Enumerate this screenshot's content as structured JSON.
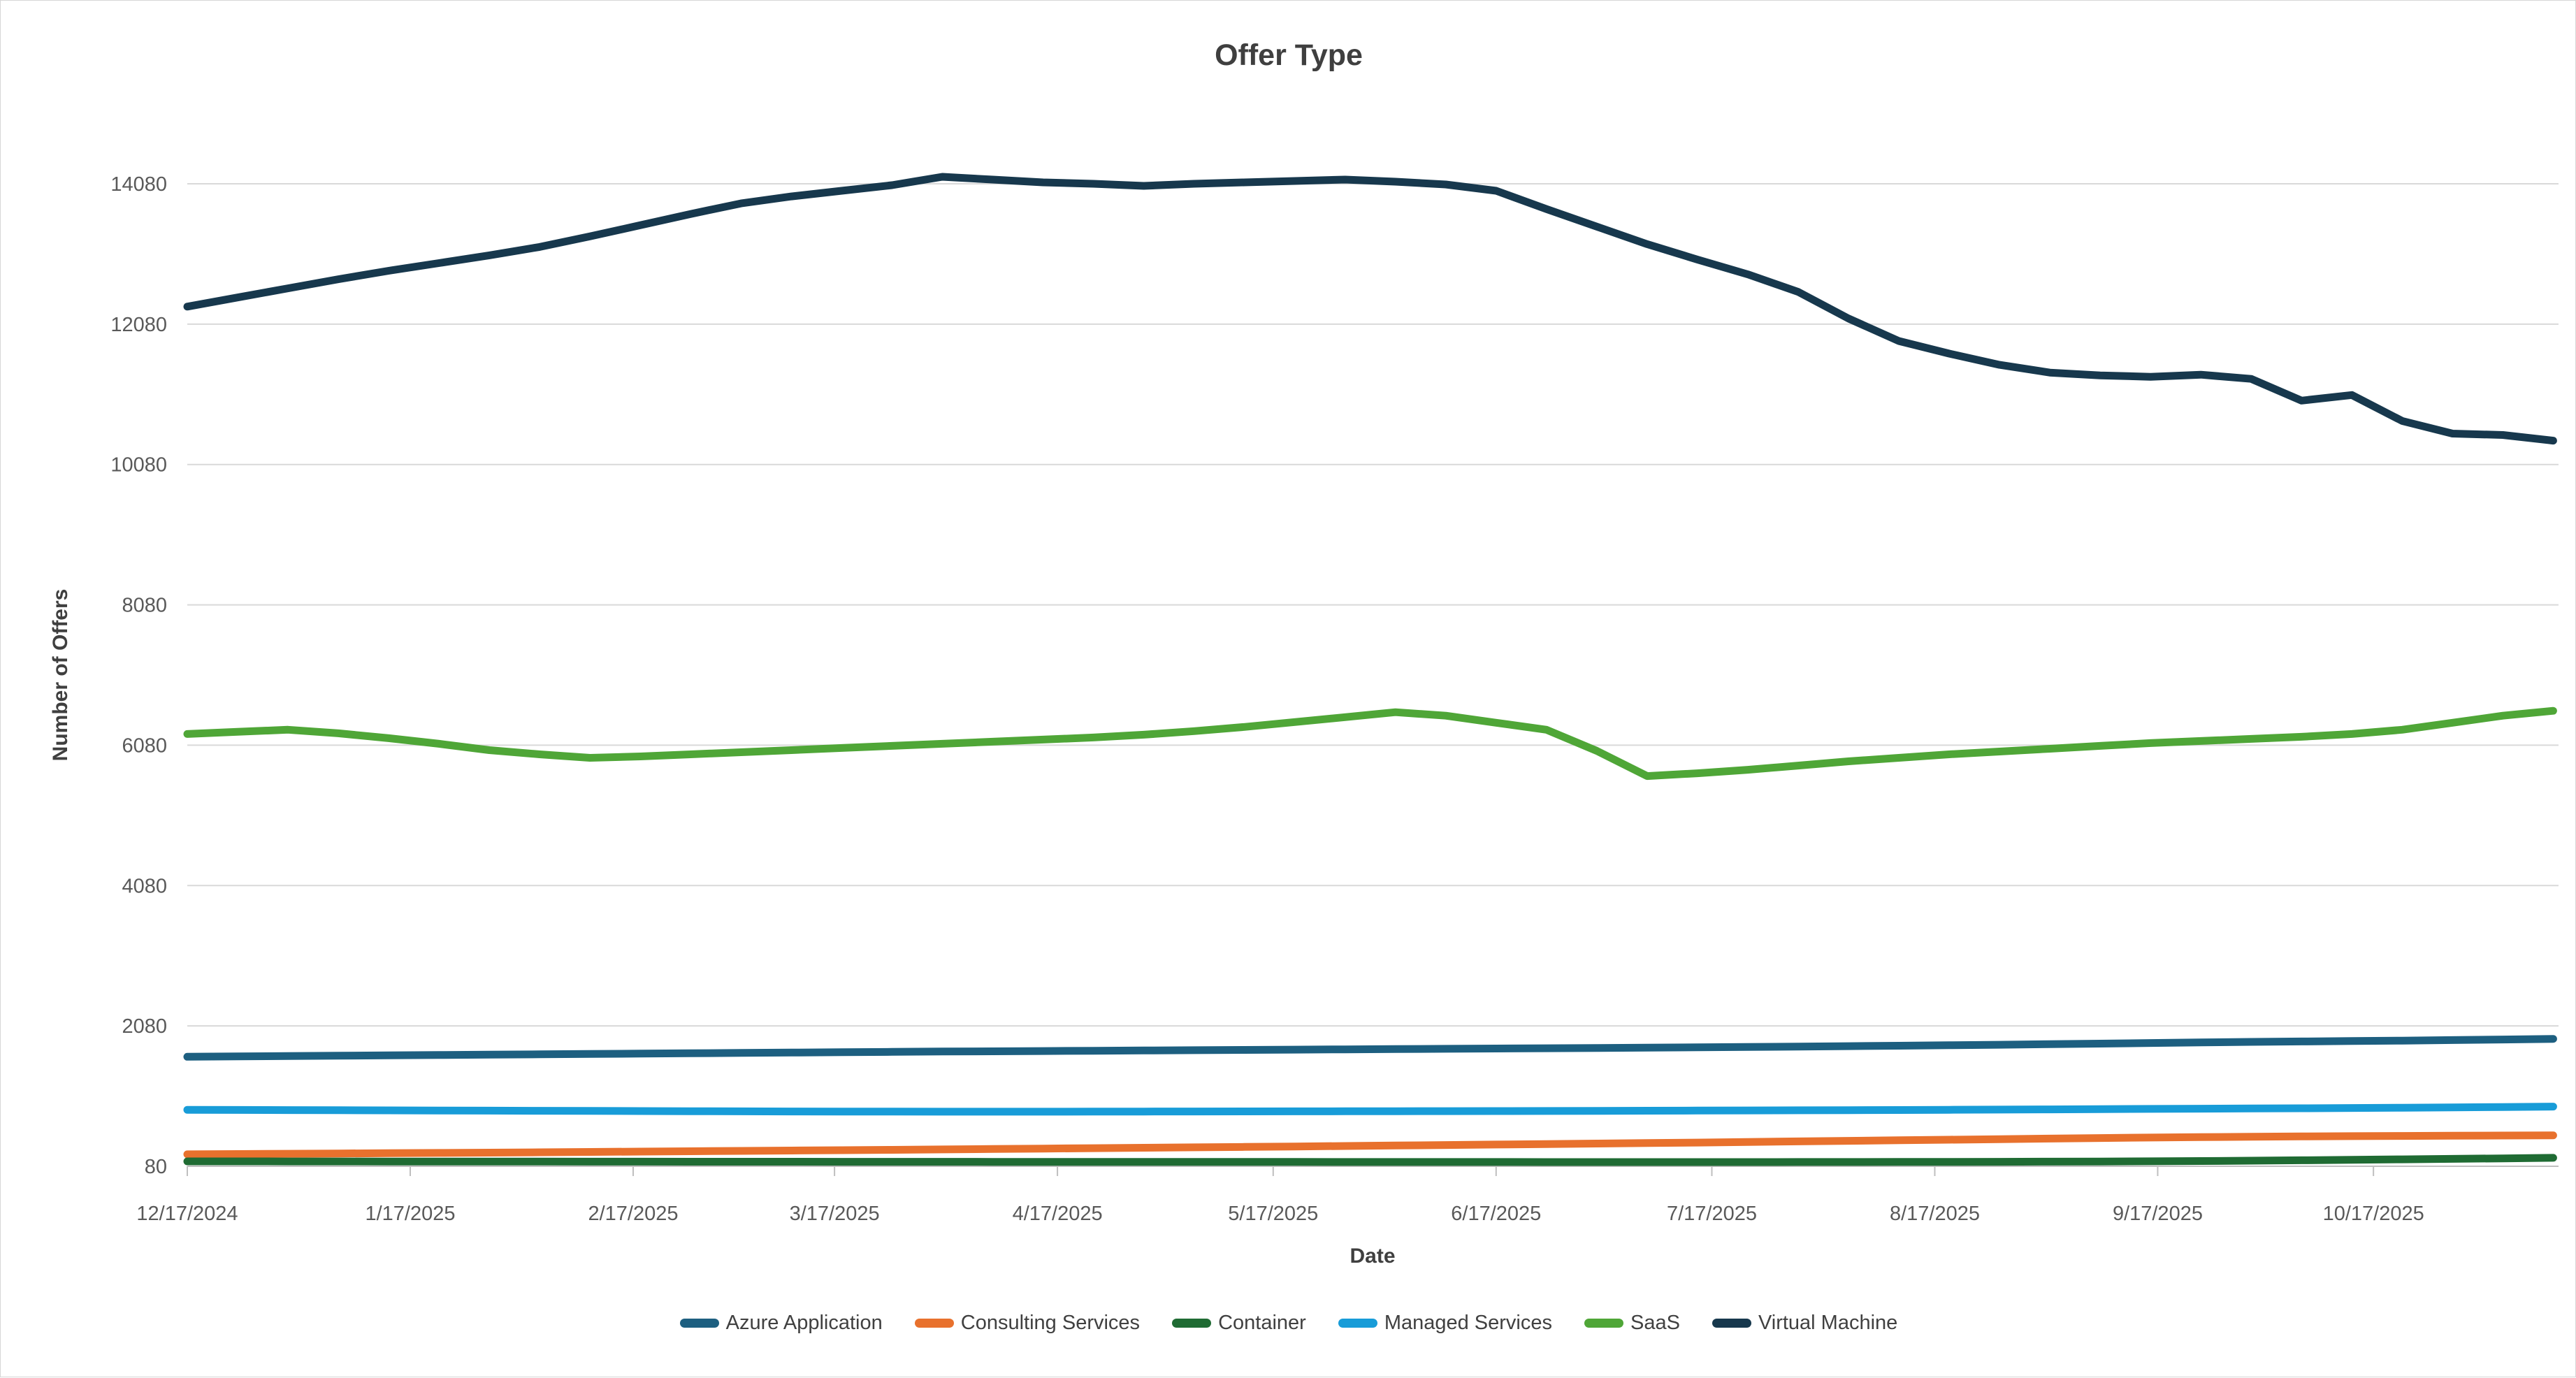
{
  "chart_data": {
    "type": "line",
    "title": "Offer Type",
    "xlabel": "Date",
    "ylabel": "Number of Offers",
    "legend_position": "bottom",
    "grid": true,
    "colors": {
      "gridline": "#d9d9d9",
      "axis_line": "#bfbfbf",
      "tick_mark": "#bfbfbf",
      "tick_text": "#595959",
      "title_text": "#3f3f3f",
      "background": "#ffffff"
    },
    "y_axis": {
      "min": 80,
      "max": 14580,
      "major_unit": 2000,
      "tick_values": [
        80,
        2080,
        4080,
        6080,
        8080,
        10080,
        12080,
        14080
      ]
    },
    "x_axis": {
      "tick_dates": [
        "2024-12-17",
        "2025-01-17",
        "2025-02-17",
        "2025-03-17",
        "2025-04-17",
        "2025-05-17",
        "2025-06-17",
        "2025-07-17",
        "2025-08-17",
        "2025-09-17",
        "2025-10-17"
      ],
      "tick_labels": [
        "12/17/2024",
        "1/17/2025",
        "2/17/2025",
        "3/17/2025",
        "4/17/2025",
        "5/17/2025",
        "6/17/2025",
        "7/17/2025",
        "8/17/2025",
        "9/17/2025",
        "10/17/2025"
      ]
    },
    "x": [
      "2024-12-17",
      "2024-12-24",
      "2024-12-31",
      "2025-01-07",
      "2025-01-14",
      "2025-01-21",
      "2025-01-28",
      "2025-02-04",
      "2025-02-11",
      "2025-02-18",
      "2025-02-25",
      "2025-03-04",
      "2025-03-11",
      "2025-03-18",
      "2025-03-25",
      "2025-04-01",
      "2025-04-08",
      "2025-04-15",
      "2025-04-22",
      "2025-04-29",
      "2025-05-06",
      "2025-05-13",
      "2025-05-20",
      "2025-05-27",
      "2025-06-03",
      "2025-06-10",
      "2025-06-17",
      "2025-06-24",
      "2025-07-01",
      "2025-07-08",
      "2025-07-15",
      "2025-07-22",
      "2025-07-29",
      "2025-08-05",
      "2025-08-12",
      "2025-08-19",
      "2025-08-26",
      "2025-09-02",
      "2025-09-09",
      "2025-09-16",
      "2025-09-23",
      "2025-09-30",
      "2025-10-07",
      "2025-10-14",
      "2025-10-21",
      "2025-10-28",
      "2025-11-04",
      "2025-11-11"
    ],
    "series": [
      {
        "name": "Azure Application",
        "color": "#1d5f80",
        "values": [
          1640,
          1645,
          1650,
          1655,
          1660,
          1665,
          1670,
          1675,
          1680,
          1685,
          1690,
          1695,
          1700,
          1705,
          1710,
          1715,
          1718,
          1722,
          1726,
          1730,
          1734,
          1738,
          1742,
          1746,
          1750,
          1754,
          1758,
          1762,
          1766,
          1770,
          1775,
          1780,
          1786,
          1792,
          1798,
          1805,
          1812,
          1820,
          1828,
          1836,
          1844,
          1852,
          1858,
          1864,
          1870,
          1878,
          1886,
          1895
        ]
      },
      {
        "name": "Consulting Services",
        "color": "#e8712d",
        "values": [
          250,
          254,
          258,
          262,
          266,
          270,
          274,
          279,
          284,
          289,
          294,
          299,
          304,
          309,
          314,
          320,
          326,
          332,
          338,
          344,
          350,
          356,
          362,
          369,
          376,
          383,
          390,
          397,
          404,
          411,
          418,
          426,
          434,
          442,
          450,
          458,
          466,
          474,
          482,
          489,
          495,
          500,
          505,
          509,
          512,
          515,
          518,
          520
        ]
      },
      {
        "name": "Container",
        "color": "#1f6b33",
        "values": [
          150,
          150,
          149,
          149,
          148,
          148,
          147,
          147,
          146,
          146,
          145,
          145,
          145,
          144,
          144,
          144,
          143,
          143,
          143,
          142,
          142,
          142,
          142,
          141,
          141,
          141,
          141,
          140,
          140,
          140,
          140,
          140,
          141,
          141,
          142,
          143,
          144,
          146,
          148,
          151,
          155,
          160,
          166,
          172,
          179,
          186,
          193,
          200
        ]
      },
      {
        "name": "Managed Services",
        "color": "#189cd8",
        "values": [
          885,
          883,
          881,
          879,
          877,
          875,
          873,
          871,
          869,
          867,
          865,
          863,
          861,
          860,
          859,
          858,
          858,
          858,
          859,
          860,
          861,
          862,
          863,
          864,
          865,
          866,
          867,
          868,
          870,
          872,
          874,
          876,
          878,
          880,
          882,
          885,
          888,
          891,
          894,
          897,
          900,
          903,
          906,
          910,
          914,
          918,
          924,
          930
        ]
      },
      {
        "name": "SaaS",
        "color": "#4fa637",
        "values": [
          6240,
          6270,
          6300,
          6250,
          6180,
          6100,
          6010,
          5950,
          5900,
          5920,
          5950,
          5980,
          6010,
          6040,
          6070,
          6100,
          6130,
          6160,
          6190,
          6230,
          6280,
          6340,
          6410,
          6480,
          6550,
          6500,
          6400,
          6300,
          6000,
          5640,
          5680,
          5730,
          5790,
          5850,
          5900,
          5950,
          5990,
          6030,
          6070,
          6110,
          6140,
          6170,
          6200,
          6240,
          6300,
          6400,
          6500,
          6570
        ]
      },
      {
        "name": "Virtual Machine",
        "color": "#17384d",
        "values": [
          12330,
          12460,
          12590,
          12720,
          12840,
          12950,
          13060,
          13180,
          13330,
          13490,
          13650,
          13800,
          13900,
          13980,
          14060,
          14180,
          14140,
          14100,
          14080,
          14050,
          14080,
          14100,
          14120,
          14140,
          14110,
          14070,
          13980,
          13720,
          13470,
          13220,
          13000,
          12790,
          12540,
          12160,
          11840,
          11660,
          11500,
          11390,
          11350,
          11330,
          11360,
          11300,
          10990,
          11070,
          10700,
          10520,
          10500,
          10420
        ]
      }
    ]
  }
}
